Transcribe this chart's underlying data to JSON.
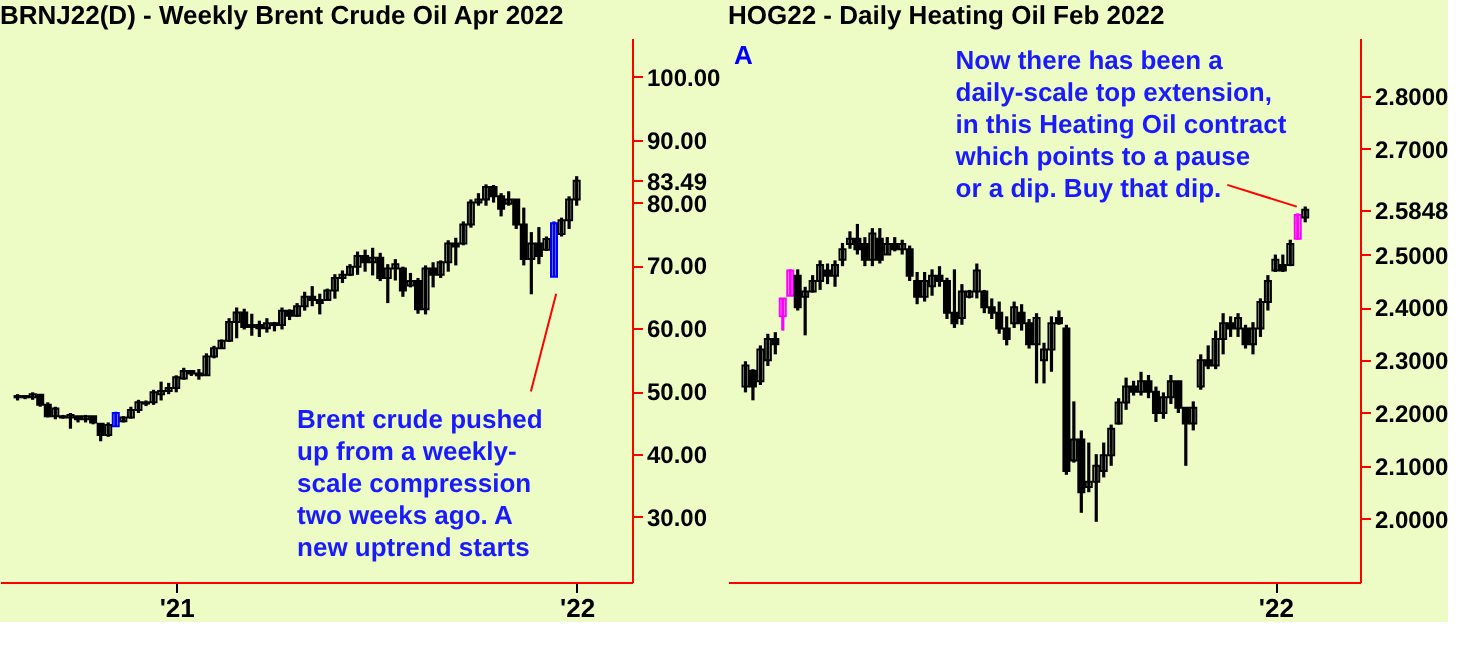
{
  "chart_data": [
    {
      "type": "candlestick",
      "title": "BRNJ22(D) - Weekly  Brent Crude Oil Apr 2022",
      "categories": [
        null,
        null,
        null,
        null,
        null,
        null,
        null,
        null,
        null,
        null,
        null,
        null,
        null,
        null,
        null,
        null,
        null,
        null,
        null,
        null,
        null,
        "'21",
        null,
        null,
        null,
        null,
        null,
        null,
        null,
        null,
        null,
        null,
        null,
        null,
        null,
        null,
        null,
        null,
        null,
        null,
        null,
        null,
        null,
        null,
        null,
        null,
        null,
        null,
        null,
        null,
        null,
        null,
        null,
        null,
        null,
        null,
        null,
        null,
        null,
        null,
        null,
        null,
        null,
        null,
        null,
        null,
        null,
        null,
        null,
        null,
        null,
        null,
        null,
        null,
        "'22"
      ],
      "ohlc": [
        [
          49.0,
          49.5,
          48.5,
          49.2
        ],
        [
          49.2,
          49.3,
          48.7,
          49.0
        ],
        [
          49.0,
          49.8,
          48.6,
          49.5
        ],
        [
          49.4,
          49.4,
          47.5,
          47.8
        ],
        [
          47.8,
          48.2,
          45.8,
          46.0
        ],
        [
          46.0,
          47.5,
          45.5,
          47.2
        ],
        [
          46.0,
          46.2,
          45.6,
          45.8
        ],
        [
          45.8,
          46.5,
          44.0,
          46.2
        ],
        [
          46.0,
          46.0,
          45.0,
          45.5
        ],
        [
          45.5,
          46.2,
          45.0,
          46.0
        ],
        [
          46.0,
          46.0,
          44.7,
          45.0
        ],
        [
          44.8,
          44.8,
          42.0,
          43.0
        ],
        [
          43.0,
          45.0,
          42.7,
          44.6
        ],
        [
          44.4,
          46.7,
          44.4,
          46.5
        ],
        [
          45.2,
          46.0,
          45.0,
          45.8
        ],
        [
          45.8,
          47.5,
          45.6,
          47.0
        ],
        [
          47.0,
          48.6,
          46.5,
          48.2
        ],
        [
          48.0,
          48.5,
          47.6,
          48.2
        ],
        [
          48.2,
          50.2,
          47.8,
          49.8
        ],
        [
          49.5,
          51.5,
          48.5,
          50.0
        ],
        [
          50.0,
          51.3,
          49.5,
          50.5
        ],
        [
          50.5,
          52.5,
          49.8,
          52.2
        ],
        [
          52.0,
          53.7,
          51.8,
          53.2
        ],
        [
          53.2,
          53.3,
          52.4,
          52.8
        ],
        [
          52.8,
          53.5,
          51.8,
          52.5
        ],
        [
          52.5,
          56.0,
          52.5,
          55.5
        ],
        [
          55.5,
          57.2,
          55.2,
          56.8
        ],
        [
          56.8,
          58.2,
          56.8,
          58.0
        ],
        [
          58.0,
          61.6,
          57.8,
          61.0
        ],
        [
          61.0,
          63.3,
          58.4,
          62.5
        ],
        [
          62.5,
          63.1,
          59.8,
          60.2
        ],
        [
          60.2,
          62.3,
          58.8,
          60.5
        ],
        [
          60.5,
          61.2,
          58.6,
          60.0
        ],
        [
          60.0,
          61.6,
          59.3,
          60.8
        ],
        [
          60.8,
          61.0,
          59.5,
          60.5
        ],
        [
          60.5,
          63.3,
          59.8,
          62.8
        ],
        [
          62.8,
          63.0,
          61.3,
          62.0
        ],
        [
          62.0,
          64.0,
          61.8,
          63.5
        ],
        [
          63.5,
          65.8,
          62.8,
          65.0
        ],
        [
          65.0,
          66.7,
          63.5,
          64.5
        ],
        [
          64.5,
          65.5,
          62.2,
          64.0
        ],
        [
          64.5,
          66.3,
          64.5,
          66.0
        ],
        [
          66.0,
          68.6,
          64.7,
          68.0
        ],
        [
          68.0,
          69.2,
          67.2,
          68.5
        ],
        [
          68.5,
          70.2,
          68.3,
          69.8
        ],
        [
          69.8,
          72.2,
          68.5,
          71.5
        ],
        [
          71.5,
          72.5,
          69.0,
          70.5
        ],
        [
          70.5,
          72.8,
          68.4,
          71.2
        ],
        [
          71.2,
          72.0,
          67.5,
          68.0
        ],
        [
          68.0,
          70.2,
          64.0,
          69.5
        ],
        [
          69.5,
          71.0,
          67.6,
          70.2
        ],
        [
          69.5,
          69.8,
          65.0,
          66.0
        ],
        [
          66.8,
          68.8,
          66.5,
          67.5
        ],
        [
          67.5,
          68.0,
          62.3,
          63.0
        ],
        [
          63.0,
          70.0,
          62.2,
          69.5
        ],
        [
          69.5,
          70.5,
          66.5,
          68.5
        ],
        [
          68.5,
          70.8,
          68.0,
          70.5
        ],
        [
          70.5,
          74.0,
          69.0,
          73.5
        ],
        [
          73.5,
          74.4,
          70.0,
          73.0
        ],
        [
          73.5,
          77.0,
          73.2,
          76.5
        ],
        [
          76.5,
          80.5,
          76.0,
          80.0
        ],
        [
          80.0,
          81.5,
          79.5,
          80.5
        ],
        [
          80.5,
          82.9,
          79.5,
          82.5
        ],
        [
          82.5,
          82.8,
          80.0,
          81.0
        ],
        [
          81.0,
          81.5,
          77.8,
          79.0
        ],
        [
          79.8,
          81.8,
          79.5,
          80.5
        ],
        [
          80.5,
          80.5,
          75.8,
          76.5
        ],
        [
          76.5,
          79.2,
          70.0,
          71.0
        ],
        [
          71.0,
          75.3,
          65.4,
          73.5
        ],
        [
          73.5,
          76.1,
          70.2,
          71.5
        ],
        [
          72.5,
          74.6,
          72.3,
          74.2
        ],
        [
          68.2,
          77.0,
          68.2,
          76.7
        ],
        [
          75.0,
          77.6,
          74.6,
          77.2
        ],
        [
          77.2,
          81.0,
          75.8,
          80.5
        ],
        [
          80.5,
          84.2,
          79.5,
          83.49
        ]
      ],
      "colors": [
        "#000000",
        "#000000",
        "#000000",
        "#000000",
        "#000000",
        "#000000",
        "#000000",
        "#000000",
        "#000000",
        "#000000",
        "#000000",
        "#000000",
        "#000000",
        "#0000ff",
        "#000000",
        "#000000",
        "#000000",
        "#000000",
        "#000000",
        "#000000",
        "#000000",
        "#000000",
        "#000000",
        "#000000",
        "#000000",
        "#000000",
        "#000000",
        "#000000",
        "#000000",
        "#000000",
        "#000000",
        "#000000",
        "#000000",
        "#000000",
        "#000000",
        "#000000",
        "#000000",
        "#000000",
        "#000000",
        "#000000",
        "#000000",
        "#000000",
        "#000000",
        "#000000",
        "#000000",
        "#000000",
        "#000000",
        "#000000",
        "#000000",
        "#000000",
        "#000000",
        "#000000",
        "#000000",
        "#000000",
        "#000000",
        "#000000",
        "#000000",
        "#000000",
        "#000000",
        "#000000",
        "#000000",
        "#000000",
        "#000000",
        "#000000",
        "#000000",
        "#000000",
        "#000000",
        "#000000",
        "#000000",
        "#000000",
        "#000000",
        "#0000ff",
        "#000000",
        "#000000",
        "#000000"
      ],
      "ylim": [
        19.6,
        106.2
      ],
      "yticks": [
        {
          "value": 30,
          "label": "30.00"
        },
        {
          "value": 40,
          "label": "40.00"
        },
        {
          "value": 50,
          "label": "50.00"
        },
        {
          "value": 60,
          "label": "60.00"
        },
        {
          "value": 70,
          "label": "70.00"
        },
        {
          "value": 80,
          "label": "80.00"
        },
        {
          "value": 83.49,
          "label": "83.49"
        },
        {
          "value": 90,
          "label": "90.00"
        },
        {
          "value": 100,
          "label": "100.00"
        }
      ],
      "annotations": [
        "Brent crude pushed\nup from a weekly-\nscale compression\ntwo weeks ago. A\nnew uptrend starts"
      ]
    },
    {
      "type": "candlestick",
      "title": "HOG22 - Daily  Heating Oil Feb 2022",
      "categories": [
        null,
        null,
        null,
        null,
        null,
        null,
        null,
        null,
        null,
        null,
        null,
        null,
        null,
        null,
        null,
        null,
        null,
        null,
        null,
        null,
        null,
        null,
        null,
        null,
        null,
        null,
        null,
        null,
        null,
        null,
        null,
        null,
        null,
        null,
        null,
        null,
        null,
        null,
        null,
        null,
        null,
        null,
        null,
        null,
        null,
        null,
        null,
        null,
        null,
        null,
        null,
        null,
        null,
        null,
        null,
        null,
        null,
        null,
        null,
        null,
        null,
        null,
        null,
        null,
        null,
        null,
        null,
        null,
        null,
        null,
        null,
        "'22",
        null,
        null,
        null,
        null
      ],
      "ohlc": [
        [
          2.25,
          2.298,
          2.239,
          2.29
        ],
        [
          2.28,
          2.283,
          2.224,
          2.25
        ],
        [
          2.26,
          2.328,
          2.253,
          2.32
        ],
        [
          2.3,
          2.35,
          2.289,
          2.34
        ],
        [
          2.34,
          2.353,
          2.311,
          2.33
        ],
        [
          2.383,
          2.417,
          2.356,
          2.417
        ],
        [
          2.422,
          2.472,
          2.422,
          2.47
        ],
        [
          2.46,
          2.472,
          2.394,
          2.4
        ],
        [
          2.42,
          2.439,
          2.347,
          2.43
        ],
        [
          2.43,
          2.461,
          2.428,
          2.45
        ],
        [
          2.45,
          2.489,
          2.433,
          2.48
        ],
        [
          2.47,
          2.483,
          2.444,
          2.46
        ],
        [
          2.46,
          2.489,
          2.439,
          2.48
        ],
        [
          2.49,
          2.522,
          2.478,
          2.51
        ],
        [
          2.52,
          2.544,
          2.511,
          2.53
        ],
        [
          2.53,
          2.558,
          2.5,
          2.51
        ],
        [
          2.52,
          2.533,
          2.478,
          2.49
        ],
        [
          2.49,
          2.55,
          2.478,
          2.54
        ],
        [
          2.53,
          2.55,
          2.483,
          2.49
        ],
        [
          2.5,
          2.533,
          2.5,
          2.52
        ],
        [
          2.52,
          2.533,
          2.506,
          2.51
        ],
        [
          2.51,
          2.528,
          2.5,
          2.52
        ],
        [
          2.51,
          2.517,
          2.45,
          2.46
        ],
        [
          2.45,
          2.467,
          2.406,
          2.42
        ],
        [
          2.42,
          2.467,
          2.411,
          2.45
        ],
        [
          2.44,
          2.472,
          2.422,
          2.46
        ],
        [
          2.46,
          2.478,
          2.439,
          2.45
        ],
        [
          2.45,
          2.456,
          2.378,
          2.39
        ],
        [
          2.39,
          2.472,
          2.361,
          2.37
        ],
        [
          2.38,
          2.444,
          2.367,
          2.43
        ],
        [
          2.42,
          2.433,
          2.417,
          2.43
        ],
        [
          2.43,
          2.483,
          2.417,
          2.47
        ],
        [
          2.43,
          2.433,
          2.389,
          2.4
        ],
        [
          2.4,
          2.417,
          2.378,
          2.39
        ],
        [
          2.39,
          2.411,
          2.35,
          2.36
        ],
        [
          2.36,
          2.383,
          2.328,
          2.34
        ],
        [
          2.37,
          2.411,
          2.361,
          2.4
        ],
        [
          2.39,
          2.406,
          2.356,
          2.37
        ],
        [
          2.37,
          2.378,
          2.322,
          2.33
        ],
        [
          2.33,
          2.389,
          2.256,
          2.38
        ],
        [
          2.3,
          2.333,
          2.256,
          2.32
        ],
        [
          2.32,
          2.383,
          2.278,
          2.37
        ],
        [
          2.38,
          2.394,
          2.367,
          2.37
        ],
        [
          2.36,
          2.367,
          2.083,
          2.09
        ],
        [
          2.11,
          2.222,
          2.106,
          2.15
        ],
        [
          2.15,
          2.167,
          2.011,
          2.05
        ],
        [
          2.06,
          2.144,
          2.05,
          2.07
        ],
        [
          2.07,
          2.122,
          1.994,
          2.1
        ],
        [
          2.09,
          2.144,
          2.078,
          2.12
        ],
        [
          2.12,
          2.178,
          2.1,
          2.17
        ],
        [
          2.18,
          2.228,
          2.178,
          2.22
        ],
        [
          2.22,
          2.267,
          2.206,
          2.25
        ],
        [
          2.25,
          2.261,
          2.233,
          2.24
        ],
        [
          2.24,
          2.278,
          2.233,
          2.26
        ],
        [
          2.26,
          2.272,
          2.228,
          2.24
        ],
        [
          2.24,
          2.25,
          2.183,
          2.2
        ],
        [
          2.2,
          2.239,
          2.189,
          2.23
        ],
        [
          2.23,
          2.272,
          2.217,
          2.26
        ],
        [
          2.26,
          2.261,
          2.2,
          2.21
        ],
        [
          2.21,
          2.211,
          2.1,
          2.18
        ],
        [
          2.18,
          2.222,
          2.167,
          2.21
        ],
        [
          2.25,
          2.311,
          2.244,
          2.3
        ],
        [
          2.3,
          2.328,
          2.283,
          2.29
        ],
        [
          2.29,
          2.356,
          2.283,
          2.34
        ],
        [
          2.34,
          2.389,
          2.311,
          2.37
        ],
        [
          2.37,
          2.383,
          2.344,
          2.36
        ],
        [
          2.36,
          2.389,
          2.344,
          2.38
        ],
        [
          2.36,
          2.367,
          2.322,
          2.33
        ],
        [
          2.33,
          2.372,
          2.311,
          2.36
        ],
        [
          2.36,
          2.417,
          2.344,
          2.41
        ],
        [
          2.41,
          2.461,
          2.394,
          2.45
        ],
        [
          2.47,
          2.5,
          2.467,
          2.49
        ],
        [
          2.48,
          2.5,
          2.467,
          2.47
        ],
        [
          2.48,
          2.528,
          2.478,
          2.52
        ],
        [
          2.53,
          2.578,
          2.528,
          2.575
        ],
        [
          2.57,
          2.591,
          2.561,
          2.5848
        ]
      ],
      "colors": [
        "#000000",
        "#000000",
        "#000000",
        "#000000",
        "#000000",
        "#ff00ff",
        "#ff00ff",
        "#000000",
        "#000000",
        "#000000",
        "#000000",
        "#000000",
        "#000000",
        "#000000",
        "#000000",
        "#000000",
        "#000000",
        "#000000",
        "#000000",
        "#000000",
        "#000000",
        "#000000",
        "#000000",
        "#000000",
        "#000000",
        "#000000",
        "#000000",
        "#000000",
        "#000000",
        "#000000",
        "#000000",
        "#000000",
        "#000000",
        "#000000",
        "#000000",
        "#000000",
        "#000000",
        "#000000",
        "#000000",
        "#000000",
        "#000000",
        "#000000",
        "#000000",
        "#000000",
        "#000000",
        "#000000",
        "#000000",
        "#000000",
        "#000000",
        "#000000",
        "#000000",
        "#000000",
        "#000000",
        "#000000",
        "#000000",
        "#000000",
        "#000000",
        "#000000",
        "#000000",
        "#000000",
        "#000000",
        "#000000",
        "#000000",
        "#000000",
        "#000000",
        "#000000",
        "#000000",
        "#000000",
        "#000000",
        "#000000",
        "#000000",
        "#000000",
        "#000000",
        "#000000",
        "#ff00ff",
        "#000000"
      ],
      "ylim": [
        1.88,
        2.91
      ],
      "yticks": [
        {
          "value": 2.0,
          "label": "2.0000"
        },
        {
          "value": 2.1,
          "label": "2.1000"
        },
        {
          "value": 2.2,
          "label": "2.2000"
        },
        {
          "value": 2.3,
          "label": "2.3000"
        },
        {
          "value": 2.4,
          "label": "2.4000"
        },
        {
          "value": 2.5,
          "label": "2.5000"
        },
        {
          "value": 2.5848,
          "label": "2.5848"
        },
        {
          "value": 2.7,
          "label": "2.7000"
        },
        {
          "value": 2.8,
          "label": "2.8000"
        }
      ],
      "annotations": [
        "Now there has been a\ndaily-scale top extension,\nin this Heating Oil contract\nwhich points to a pause\nor a dip. Buy that dip.",
        "A"
      ]
    }
  ]
}
